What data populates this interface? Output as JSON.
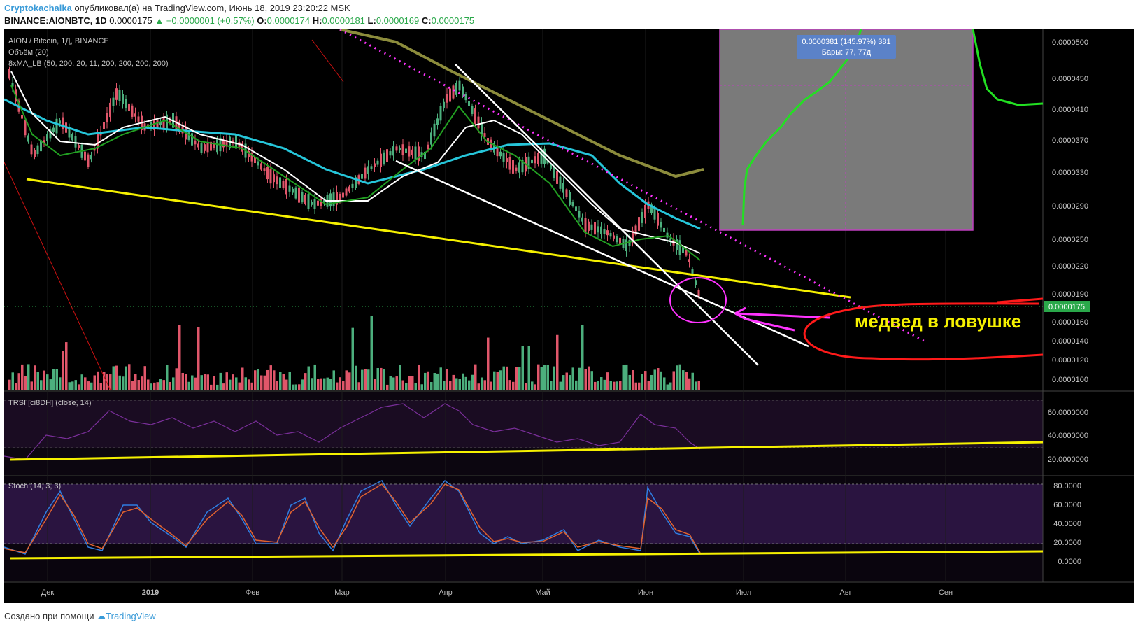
{
  "header": {
    "author": "Cryptokachalka",
    "published": "опубликовал(а) на TradingView.com, Июнь 18, 2019 23:20:22 MSK",
    "symbol": "BINANCE:AIONBTC, 1D",
    "price": "0.0000175",
    "change": "▲ +0.0000001 (+0.57%)",
    "o_label": "O:",
    "o": "0.0000174",
    "h_label": "H:",
    "h": "0.0000181",
    "l_label": "L:",
    "l": "0.0000169",
    "c_label": "C:",
    "c": "0.0000175"
  },
  "legend": {
    "title": "AION / Bitcoin, 1Д, BINANCE",
    "volume": "Объём (20)",
    "ma": "8xMA_LB (50, 200, 20, 11, 200, 200, 200, 200)"
  },
  "price_axis": [
    "0.0000500",
    "0.0000450",
    "0.0000410",
    "0.0000370",
    "0.0000330",
    "0.0000290",
    "0.0000250",
    "0.0000220",
    "0.0000190",
    "0.0000160",
    "0.0000140",
    "0.0000120",
    "0.0000100"
  ],
  "last_price": "0.0000175",
  "measure": {
    "line1": "0.0000381 (145.97%) 381",
    "line2": "Бары: 77, 77д"
  },
  "annotation": "медвед в ловушке",
  "trsi": {
    "title": "TRSI [ci8DH] (close, 14)",
    "axis": [
      "60.0000000",
      "40.0000000",
      "20.0000000"
    ]
  },
  "stoch": {
    "title": "Stoch (14, 3, 3)",
    "axis": [
      "80.0000",
      "60.0000",
      "40.0000",
      "20.0000",
      "0.0000"
    ]
  },
  "time_axis": [
    "Дек",
    "2019",
    "Фев",
    "Мар",
    "Апр",
    "Май",
    "Июн",
    "Июл",
    "Авг",
    "Сен"
  ],
  "footer": {
    "text": "Создано при помощи",
    "brand": "TradingView"
  },
  "colors": {
    "background": "#000000",
    "up_candle": "#4caf7d",
    "down_candle": "#e0566a",
    "trendline_yellow": "#f5f000",
    "ma_cyan": "#26c6da",
    "ma_olive": "#8c8c3c",
    "annotation_magenta": "#ff33ff",
    "annotation_red": "#ff1a1a",
    "measure_box": "#7a7a7a",
    "measure_label": "#5b82c8"
  }
}
